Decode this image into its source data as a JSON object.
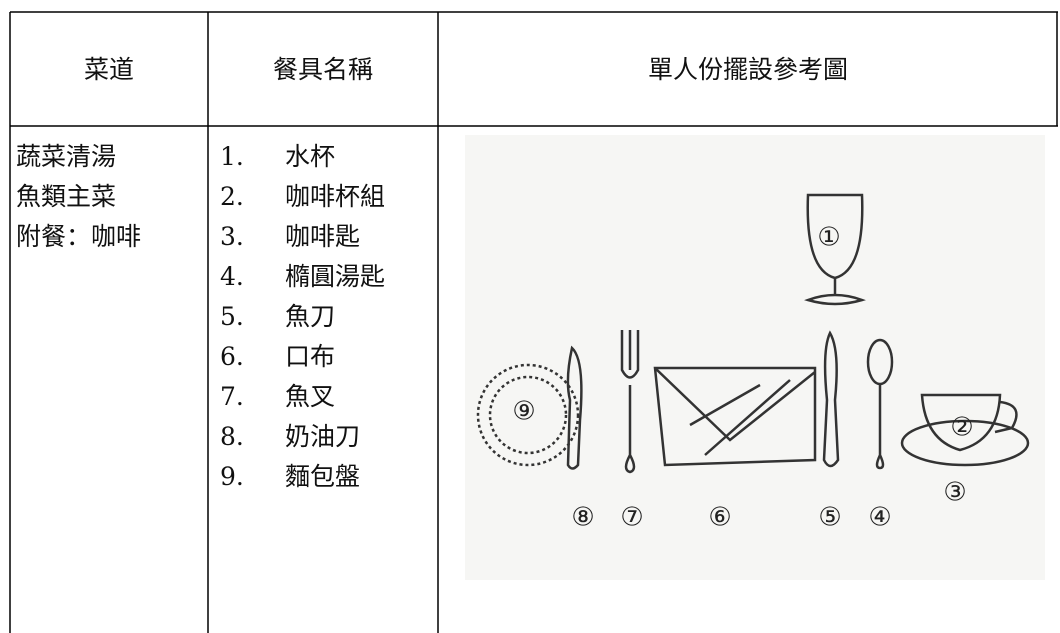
{
  "header": [
    "菜道",
    "餐具名稱",
    "單人份擺設參考圖"
  ],
  "dishes": [
    "蔬菜清湯",
    "魚類主菜",
    "附餐：咖啡"
  ],
  "utensils": [
    {
      "number": "1.",
      "name": "水杯"
    },
    {
      "number": "2.",
      "name": "咖啡杯組"
    },
    {
      "number": "3.",
      "name": "咖啡匙"
    },
    {
      "number": "4.",
      "name": "橢圓湯匙"
    },
    {
      "number": "5.",
      "name": "魚刀"
    },
    {
      "number": "6.",
      "name": "口布"
    },
    {
      "number": "7.",
      "name": "魚叉"
    },
    {
      "number": "8.",
      "name": "奶油刀"
    },
    {
      "number": "9.",
      "name": "麵包盤"
    }
  ],
  "diagram_labels": [
    "①",
    "②",
    "③",
    "④",
    "⑤",
    "⑥",
    "⑦",
    "⑧",
    "⑨"
  ]
}
